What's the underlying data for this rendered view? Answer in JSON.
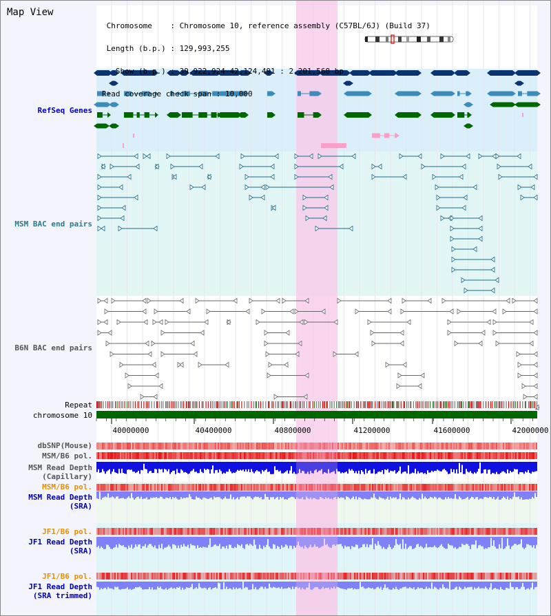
{
  "title": "Map View",
  "info": {
    "chromosome_label": "Chromosome",
    "chromosome_value": "Chromosome 10, reference assembly (C57BL/6J) (Build 37)",
    "length_label": "Length (b.p.)",
    "length_value": "129,993,255",
    "show_label": "Show (b.p.)",
    "show_value": "39,922,924-42,124,491 : 2,201,568 bp",
    "coverage_label": "Read coverage check span",
    "coverage_value": "10,000"
  },
  "tracks": {
    "refseq": "RefSeq Genes",
    "msm_bac": "MSM BAC end pairs",
    "b6n_bac": "B6N BAC end pairs",
    "repeat": "Repeat",
    "chromosome": "chromosome 10",
    "dbsnp": "dbSNP(Mouse)",
    "msm_b6_pol_1": "MSM/B6 pol.",
    "msm_depth_cap_1": "MSM Read Depth",
    "msm_depth_cap_2": "(Capillary)",
    "msm_b6_pol_2": "MSM/B6 pol.",
    "msm_depth_sra_1": "MSM Read Depth",
    "msm_depth_sra_2": "(SRA)",
    "jf1_pol_1": "JF1/B6 pol.",
    "jf1_depth_sra_1": "JF1 Read Depth",
    "jf1_depth_sra_2": "(SRA)",
    "jf1_pol_2": "JF1/B6 pol.",
    "jf1_depth_trim_1": "JF1 Read Depth",
    "jf1_depth_trim_2": "(SRA trimmed)"
  },
  "axis": {
    "ticks": [
      "40000000",
      "40400000",
      "40800000",
      "41200000",
      "41600000",
      "42000000"
    ]
  },
  "colors": {
    "refseq_dark": "#0a3370",
    "refseq_mid": "#3d8bb8",
    "refseq_green": "#006600",
    "refseq_pink": "#f8a0c8",
    "msm_line": "#1a6a8a",
    "b6n_line": "#666666",
    "highlight": "#f8c8e8",
    "refseq_bg": "#dbeffa",
    "msm_bg": "#e2f6f6",
    "chrom_green": "#006600",
    "depth_blue": "#1010e0",
    "depth_light": "#8080f8",
    "label_blue": "#0000b0",
    "label_teal": "#2a7a8a",
    "label_gray": "#555555",
    "label_orange": "#e89000"
  },
  "icons": {
    "ideogram": "chromosome-ideogram-icon"
  }
}
